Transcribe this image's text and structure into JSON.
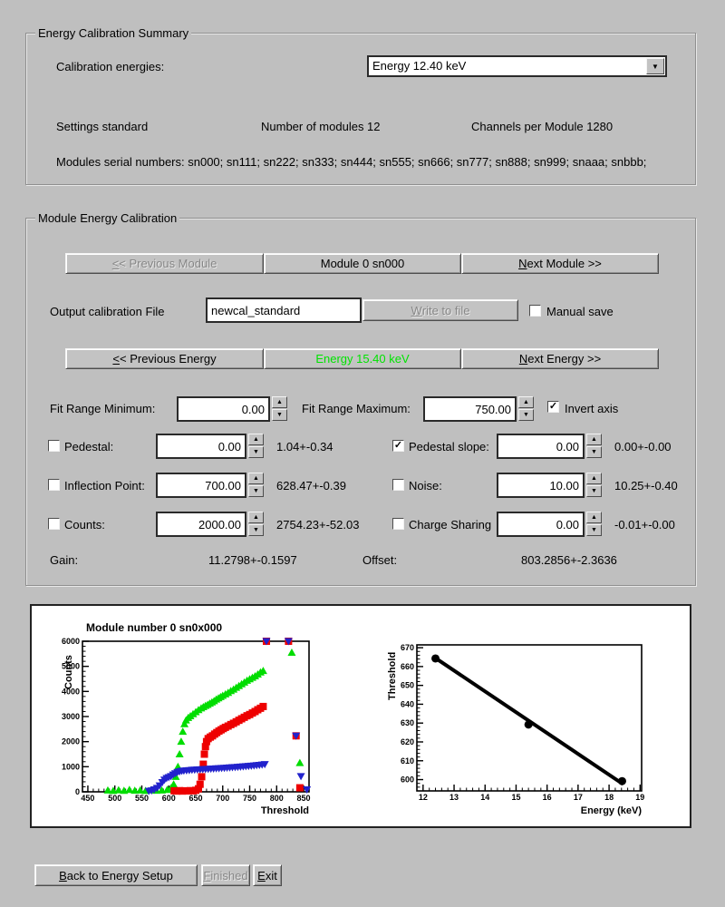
{
  "colors": {
    "background": "#bfbfbf",
    "energy_label_active": "#00e400",
    "series_green": "#00dd00",
    "series_red": "#ee0000",
    "series_blue": "#2222cc",
    "fit_black": "#000000"
  },
  "summary_group": {
    "title": "Energy Calibration Summary",
    "calibration_energies_label": "Calibration energies:",
    "energy_dropdown_value": "Energy 12.40 keV",
    "settings": "Settings standard",
    "num_modules": "Number of modules 12",
    "channels_per_module": "Channels per Module 1280",
    "serials": "Modules serial numbers: sn000; sn111; sn222; sn333; sn444; sn555; sn666; sn777; sn888; sn999; snaaa; snbbb;"
  },
  "module_group": {
    "title": "Module Energy Calibration",
    "prev_module": "&<< Previous Module",
    "module_label": "Module 0 sn000",
    "next_module": "&Next Module >>",
    "output_file_label": "Output calibration File",
    "output_file_value": "newcal_standard",
    "write_to_file": "&Write to file",
    "manual_save_label": "Manual save",
    "manual_save_checked": false,
    "prev_energy": "&<< Previous Energy",
    "energy_label": "Energy 15.40 keV",
    "next_energy": "&Next Energy >>",
    "fit_min_label": "Fit Range Minimum:",
    "fit_min_value": "0.00",
    "fit_max_label": "Fit Range Maximum:",
    "fit_max_value": "750.00",
    "invert_axis_label": "Invert axis",
    "invert_axis_checked": true,
    "rows": {
      "pedestal": {
        "label": "Pedestal:",
        "checked": false,
        "value": "0.00",
        "result": "1.04+-0.34"
      },
      "pedslope": {
        "label": "Pedestal slope:",
        "checked": true,
        "value": "0.00",
        "result": "0.00+-0.00"
      },
      "inflection": {
        "label": "Inflection Point:",
        "checked": false,
        "value": "700.00",
        "result": "628.47+-0.39"
      },
      "noise": {
        "label": "Noise:",
        "checked": false,
        "value": "10.00",
        "result": "10.25+-0.40"
      },
      "counts": {
        "label": "Counts:",
        "checked": false,
        "value": "2000.00",
        "result": "2754.23+-52.03"
      },
      "charge": {
        "label": "Charge Sharing",
        "checked": false,
        "value": "0.00",
        "result": "-0.01+-0.00"
      }
    },
    "gain_label": "Gain:",
    "gain_value": "11.2798+-0.1597",
    "offset_label": "Offset:",
    "offset_value": "803.2856+-2.3636"
  },
  "footer": {
    "back": "&Back to Energy Setup",
    "finished": "&Finished",
    "exit": "&Exit"
  },
  "chart_data": [
    {
      "type": "scatter",
      "title": "Module number 0 sn0x000",
      "xlabel": "Threshold",
      "ylabel": "Counts",
      "xlim": [
        440,
        860
      ],
      "ylim": [
        0,
        6000
      ],
      "xticks": [
        450,
        500,
        550,
        600,
        650,
        700,
        750,
        800,
        850
      ],
      "yticks": [
        0,
        1000,
        2000,
        3000,
        4000,
        5000,
        6000
      ],
      "x_minor_step": 10,
      "y_minor_step": 200,
      "legend": "none",
      "series": [
        {
          "name": "scurve-green-triangles",
          "marker": "triangle-up",
          "color": "#00dd00",
          "points": [
            [
              487,
              60
            ],
            [
              497,
              40
            ],
            [
              507,
              70
            ],
            [
              517,
              45
            ],
            [
              527,
              80
            ],
            [
              537,
              50
            ],
            [
              547,
              60
            ],
            [
              557,
              40
            ],
            [
              567,
              70
            ],
            [
              577,
              50
            ],
            [
              587,
              60
            ],
            [
              597,
              80
            ],
            [
              604,
              150
            ],
            [
              609,
              300
            ],
            [
              613,
              600
            ],
            [
              617,
              1000
            ],
            [
              620,
              1500
            ],
            [
              623,
              2000
            ],
            [
              626,
              2400
            ],
            [
              629,
              2700
            ],
            [
              632,
              2850
            ],
            [
              636,
              2950
            ],
            [
              640,
              3020
            ],
            [
              645,
              3100
            ],
            [
              650,
              3180
            ],
            [
              655,
              3260
            ],
            [
              660,
              3330
            ],
            [
              664,
              3380
            ],
            [
              668,
              3430
            ],
            [
              672,
              3470
            ],
            [
              676,
              3520
            ],
            [
              680,
              3570
            ],
            [
              684,
              3620
            ],
            [
              688,
              3680
            ],
            [
              692,
              3730
            ],
            [
              696,
              3780
            ],
            [
              700,
              3830
            ],
            [
              705,
              3890
            ],
            [
              710,
              3950
            ],
            [
              715,
              4020
            ],
            [
              720,
              4080
            ],
            [
              725,
              4150
            ],
            [
              730,
              4220
            ],
            [
              735,
              4290
            ],
            [
              740,
              4360
            ],
            [
              745,
              4430
            ],
            [
              750,
              4490
            ],
            [
              755,
              4550
            ],
            [
              760,
              4610
            ],
            [
              765,
              4680
            ],
            [
              770,
              4760
            ],
            [
              775,
              4820
            ],
            [
              828,
              5550
            ],
            [
              843,
              1150
            ]
          ]
        },
        {
          "name": "scurve-red-squares",
          "marker": "square",
          "color": "#ee0000",
          "points": [
            [
              610,
              40
            ],
            [
              615,
              30
            ],
            [
              620,
              45
            ],
            [
              625,
              30
            ],
            [
              630,
              40
            ],
            [
              635,
              35
            ],
            [
              640,
              45
            ],
            [
              645,
              40
            ],
            [
              650,
              60
            ],
            [
              655,
              120
            ],
            [
              658,
              300
            ],
            [
              661,
              600
            ],
            [
              664,
              1100
            ],
            [
              666,
              1500
            ],
            [
              668,
              1800
            ],
            [
              670,
              2000
            ],
            [
              673,
              2120
            ],
            [
              677,
              2180
            ],
            [
              681,
              2230
            ],
            [
              685,
              2300
            ],
            [
              689,
              2360
            ],
            [
              693,
              2420
            ],
            [
              697,
              2470
            ],
            [
              701,
              2520
            ],
            [
              705,
              2570
            ],
            [
              710,
              2620
            ],
            [
              715,
              2680
            ],
            [
              720,
              2730
            ],
            [
              725,
              2790
            ],
            [
              730,
              2850
            ],
            [
              735,
              2910
            ],
            [
              740,
              2970
            ],
            [
              745,
              3030
            ],
            [
              750,
              3080
            ],
            [
              755,
              3140
            ],
            [
              760,
              3200
            ],
            [
              765,
              3270
            ],
            [
              770,
              3330
            ],
            [
              775,
              3400
            ],
            [
              781,
              6000
            ],
            [
              822,
              6000
            ],
            [
              836,
              2230
            ],
            [
              843,
              160
            ]
          ]
        },
        {
          "name": "scurve-blue-triangles",
          "marker": "triangle-down",
          "color": "#2222cc",
          "points": [
            [
              563,
              30
            ],
            [
              568,
              50
            ],
            [
              573,
              90
            ],
            [
              578,
              150
            ],
            [
              583,
              250
            ],
            [
              588,
              380
            ],
            [
              592,
              480
            ],
            [
              596,
              540
            ],
            [
              600,
              580
            ],
            [
              604,
              620
            ],
            [
              608,
              680
            ],
            [
              612,
              730
            ],
            [
              616,
              780
            ],
            [
              620,
              810
            ],
            [
              624,
              830
            ],
            [
              628,
              840
            ],
            [
              633,
              850
            ],
            [
              638,
              860
            ],
            [
              643,
              870
            ],
            [
              648,
              878
            ],
            [
              653,
              885
            ],
            [
              658,
              892
            ],
            [
              663,
              898
            ],
            [
              668,
              904
            ],
            [
              673,
              910
            ],
            [
              678,
              916
            ],
            [
              683,
              922
            ],
            [
              688,
              929
            ],
            [
              693,
              936
            ],
            [
              698,
              943
            ],
            [
              703,
              950
            ],
            [
              708,
              958
            ],
            [
              713,
              966
            ],
            [
              718,
              974
            ],
            [
              723,
              982
            ],
            [
              728,
              990
            ],
            [
              733,
              998
            ],
            [
              738,
              1006
            ],
            [
              743,
              1015
            ],
            [
              748,
              1024
            ],
            [
              753,
              1034
            ],
            [
              758,
              1044
            ],
            [
              763,
              1056
            ],
            [
              768,
              1068
            ],
            [
              773,
              1082
            ],
            [
              778,
              1100
            ],
            [
              781,
              6000
            ],
            [
              822,
              6000
            ],
            [
              836,
              2230
            ],
            [
              845,
              620
            ],
            [
              856,
              90
            ]
          ]
        }
      ]
    },
    {
      "type": "scatter-line",
      "title": "",
      "xlabel": "Energy (keV)",
      "ylabel": "Threshold",
      "xlim": [
        11.8,
        19.05
      ],
      "ylim": [
        594,
        671.5
      ],
      "xticks": [
        12,
        13,
        14,
        15,
        16,
        17,
        18,
        19
      ],
      "yticks": [
        600,
        610,
        620,
        630,
        640,
        650,
        660,
        670
      ],
      "x_minor_step": 0.2,
      "y_minor_step": 2,
      "legend": "none",
      "fit_line": {
        "x1": 12.4,
        "y1": 664.5,
        "x2": 18.45,
        "y2": 597.6,
        "color": "#000000",
        "width": 4
      },
      "series": [
        {
          "name": "calibration-points",
          "marker": "circle",
          "color": "#000000",
          "points": [
            [
              12.4,
              664.3
            ],
            [
              15.4,
              629.2
            ],
            [
              18.42,
              599.2
            ]
          ]
        }
      ]
    }
  ]
}
